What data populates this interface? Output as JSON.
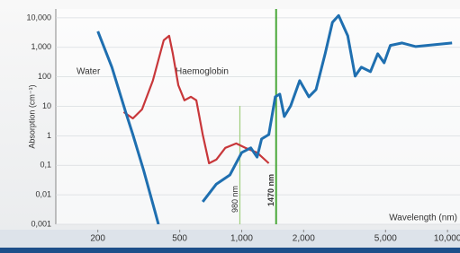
{
  "chart_data": {
    "type": "line",
    "xlabel": "Wavelength (nm)",
    "ylabel": "Absorption (cm⁻¹)",
    "xscale": "log",
    "yscale": "log",
    "grid": true,
    "xlim": [
      125,
      11500
    ],
    "ylim": [
      0.001,
      20000
    ],
    "xticks": [
      200,
      500,
      {
        "value": 1000,
        "label": "1,000"
      },
      {
        "value": 2000,
        "label": "2,000"
      },
      {
        "value": 5000,
        "label": "5,000"
      },
      {
        "value": 10000,
        "label": "10,000"
      }
    ],
    "yticks": [
      {
        "value": 0.001,
        "label": "0,001"
      },
      {
        "value": 0.01,
        "label": "0,01"
      },
      {
        "value": 0.1,
        "label": "0,1"
      },
      1,
      10,
      100,
      {
        "value": 1000,
        "label": "1,000"
      },
      {
        "value": 10000,
        "label": "10,000"
      }
    ],
    "series": [
      {
        "name": "Water",
        "color": "#1f6fb0",
        "x": [
          200,
          234,
          273,
          296,
          334,
          378,
          394,
          550,
          647,
          753,
          877,
          1000,
          1107,
          1188,
          1250,
          1355,
          1456,
          1531,
          1611,
          1729,
          1914,
          2120,
          2297,
          2543,
          2760,
          2960,
          3275,
          3556,
          3814,
          4223,
          4579,
          4918,
          5275,
          6019,
          7014,
          8590,
          10520
        ],
        "values": [
          3500,
          212,
          6.4,
          1.1,
          0.067,
          0.0029,
          0.001,
          null,
          0.0058,
          0.023,
          0.047,
          0.27,
          0.39,
          0.19,
          0.78,
          1.1,
          21,
          26,
          4.5,
          10.4,
          74,
          21,
          37,
          606,
          7050,
          12000,
          2460,
          105,
          212,
          149,
          606,
          300,
          1160,
          1410,
          1060,
          1220,
          1410
        ]
      },
      {
        "name": "Haemoglobin",
        "color": "#c8373a",
        "x": [
          267,
          296,
          328,
          370,
          418,
          444,
          463,
          492,
          527,
          567,
          602,
          647,
          694,
          753,
          833,
          941,
          1041,
          1188,
          1355
        ],
        "values": [
          6.4,
          3.9,
          7.9,
          74,
          1730,
          2460,
          606,
          52,
          16,
          21,
          16,
          1.1,
          0.117,
          0.156,
          0.39,
          0.55,
          0.39,
          0.27,
          0.117
        ]
      }
    ],
    "markers": [
      {
        "value": 980,
        "label": "980 nm",
        "color": "#9fce7c"
      },
      {
        "value": 1470,
        "label": "1470 nm",
        "color": "#4aa83a"
      }
    ]
  }
}
